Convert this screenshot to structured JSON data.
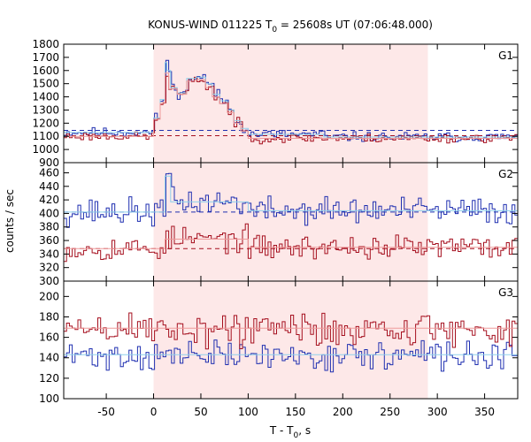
{
  "chart_data": {
    "type": "line",
    "title_parts": {
      "prefix": "KONUS-WIND 011225 T",
      "sub": "0",
      "suffix": " = 25608s UT (07:06:48.000)"
    },
    "xlabel_parts": {
      "prefix": "T - T",
      "sub": "0",
      "suffix": ", s"
    },
    "ylabel": "counts / sec",
    "xlim": [
      -95,
      385
    ],
    "xticks": [
      -50,
      0,
      50,
      100,
      150,
      200,
      250,
      300,
      350
    ],
    "highlight_interval": [
      0,
      290
    ],
    "colors": {
      "highlight": "#fde8e8",
      "series_blue": "#1f2fb0",
      "series_red": "#a50f1e",
      "fit_blue": "#8fd0ec",
      "fit_red": "#ee9a9a",
      "background_level_blue": "#1f2fb0",
      "background_level_red": "#a50f1e"
    },
    "panels": [
      {
        "name": "G1",
        "ylim": [
          900,
          1800
        ],
        "yticks": [
          900,
          1000,
          1100,
          1200,
          1300,
          1400,
          1500,
          1600,
          1700,
          1800
        ],
        "background_level": {
          "blue": 1145,
          "red": 1105
        },
        "series": [
          {
            "color_key": "blue",
            "baseline": 1130,
            "noise": 18,
            "seed": 11,
            "features": [
              {
                "x0": 0,
                "x1": 7,
                "level": 1240
              },
              {
                "x0": 7,
                "x1": 12,
                "level": 1380
              },
              {
                "x0": 12,
                "x1": 14,
                "level": 1660
              },
              {
                "x0": 14,
                "x1": 18,
                "level": 1600
              },
              {
                "x0": 18,
                "x1": 25,
                "level": 1470
              },
              {
                "x0": 25,
                "x1": 35,
                "level": 1430
              },
              {
                "x0": 35,
                "x1": 45,
                "level": 1540
              },
              {
                "x0": 45,
                "x1": 55,
                "level": 1550
              },
              {
                "x0": 55,
                "x1": 62,
                "level": 1500
              },
              {
                "x0": 62,
                "x1": 70,
                "level": 1420
              },
              {
                "x0": 70,
                "x1": 78,
                "level": 1370
              },
              {
                "x0": 78,
                "x1": 85,
                "level": 1300
              },
              {
                "x0": 85,
                "x1": 92,
                "level": 1220
              },
              {
                "x0": 92,
                "x1": 100,
                "level": 1160
              },
              {
                "x0": 100,
                "x1": 180,
                "level": 1115
              },
              {
                "x0": 180,
                "x1": 385,
                "level": 1095
              }
            ]
          },
          {
            "color_key": "red",
            "baseline": 1100,
            "noise": 16,
            "seed": 23,
            "features": [
              {
                "x0": 0,
                "x1": 7,
                "level": 1230
              },
              {
                "x0": 7,
                "x1": 12,
                "level": 1350
              },
              {
                "x0": 12,
                "x1": 16,
                "level": 1580
              },
              {
                "x0": 16,
                "x1": 25,
                "level": 1460
              },
              {
                "x0": 25,
                "x1": 35,
                "level": 1420
              },
              {
                "x0": 35,
                "x1": 45,
                "level": 1520
              },
              {
                "x0": 45,
                "x1": 55,
                "level": 1530
              },
              {
                "x0": 55,
                "x1": 62,
                "level": 1470
              },
              {
                "x0": 62,
                "x1": 70,
                "level": 1400
              },
              {
                "x0": 70,
                "x1": 78,
                "level": 1350
              },
              {
                "x0": 78,
                "x1": 85,
                "level": 1280
              },
              {
                "x0": 85,
                "x1": 92,
                "level": 1200
              },
              {
                "x0": 92,
                "x1": 100,
                "level": 1140
              },
              {
                "x0": 100,
                "x1": 385,
                "level": 1085
              }
            ]
          }
        ],
        "fits": [
          {
            "color_key": "fit_blue",
            "points": [
              [
                -95,
                1130
              ],
              [
                0,
                1130
              ],
              [
                0,
                1240
              ],
              [
                7,
                1240
              ],
              [
                7,
                1380
              ],
              [
                12,
                1380
              ],
              [
                12,
                1660
              ],
              [
                14,
                1660
              ],
              [
                14,
                1600
              ],
              [
                18,
                1600
              ],
              [
                18,
                1470
              ],
              [
                25,
                1470
              ],
              [
                25,
                1430
              ],
              [
                35,
                1430
              ],
              [
                35,
                1540
              ],
              [
                45,
                1540
              ],
              [
                45,
                1550
              ],
              [
                55,
                1550
              ],
              [
                55,
                1500
              ],
              [
                62,
                1500
              ],
              [
                62,
                1420
              ],
              [
                70,
                1420
              ],
              [
                70,
                1370
              ],
              [
                78,
                1370
              ],
              [
                78,
                1300
              ],
              [
                85,
                1300
              ],
              [
                85,
                1220
              ],
              [
                92,
                1220
              ],
              [
                92,
                1160
              ],
              [
                100,
                1160
              ],
              [
                100,
                1115
              ],
              [
                180,
                1115
              ],
              [
                180,
                1095
              ],
              [
                385,
                1095
              ]
            ]
          },
          {
            "color_key": "fit_red",
            "points": [
              [
                -95,
                1100
              ],
              [
                0,
                1100
              ],
              [
                0,
                1230
              ],
              [
                7,
                1230
              ],
              [
                7,
                1350
              ],
              [
                12,
                1350
              ],
              [
                12,
                1580
              ],
              [
                16,
                1580
              ],
              [
                16,
                1460
              ],
              [
                25,
                1460
              ],
              [
                25,
                1420
              ],
              [
                35,
                1420
              ],
              [
                35,
                1520
              ],
              [
                45,
                1520
              ],
              [
                45,
                1530
              ],
              [
                55,
                1530
              ],
              [
                55,
                1470
              ],
              [
                62,
                1470
              ],
              [
                62,
                1400
              ],
              [
                70,
                1400
              ],
              [
                70,
                1350
              ],
              [
                78,
                1350
              ],
              [
                78,
                1280
              ],
              [
                85,
                1280
              ],
              [
                85,
                1200
              ],
              [
                92,
                1200
              ],
              [
                92,
                1140
              ],
              [
                100,
                1140
              ],
              [
                100,
                1085
              ],
              [
                385,
                1085
              ]
            ]
          }
        ]
      },
      {
        "name": "G2",
        "ylim": [
          300,
          475
        ],
        "yticks": [
          300,
          320,
          340,
          360,
          380,
          400,
          420,
          440,
          460
        ],
        "background_level": {
          "blue": 402,
          "red": 348
        },
        "series": [
          {
            "color_key": "blue",
            "baseline": 402,
            "noise": 10,
            "seed": 37,
            "features": [
              {
                "x0": 12,
                "x1": 14,
                "level": 452
              },
              {
                "x0": 14,
                "x1": 18,
                "level": 458
              },
              {
                "x0": 18,
                "x1": 100,
                "level": 417
              },
              {
                "x0": 100,
                "x1": 385,
                "level": 404
              }
            ]
          },
          {
            "color_key": "red",
            "baseline": 348,
            "noise": 9,
            "seed": 53,
            "features": [
              {
                "x0": 12,
                "x1": 100,
                "level": 362
              },
              {
                "x0": 100,
                "x1": 385,
                "level": 350
              }
            ]
          }
        ],
        "fits": [
          {
            "color_key": "fit_blue",
            "points": [
              [
                -95,
                402
              ],
              [
                12,
                402
              ],
              [
                12,
                455
              ],
              [
                18,
                455
              ],
              [
                18,
                417
              ],
              [
                100,
                417
              ],
              [
                100,
                404
              ],
              [
                385,
                404
              ]
            ]
          },
          {
            "color_key": "fit_red",
            "points": [
              [
                -95,
                348
              ],
              [
                12,
                348
              ],
              [
                12,
                362
              ],
              [
                100,
                362
              ],
              [
                100,
                350
              ],
              [
                385,
                350
              ]
            ]
          }
        ]
      },
      {
        "name": "G3",
        "ylim": [
          100,
          215
        ],
        "yticks": [
          100,
          120,
          140,
          160,
          180,
          200
        ],
        "background_level": {
          "blue": null,
          "red": null
        },
        "series": [
          {
            "color_key": "blue",
            "baseline": 142,
            "noise": 7,
            "seed": 71,
            "features": []
          },
          {
            "color_key": "red",
            "baseline": 168,
            "noise": 9,
            "seed": 89,
            "features": []
          }
        ],
        "fits": [
          {
            "color_key": "fit_blue",
            "points": [
              [
                -95,
                143
              ],
              [
                385,
                143
              ]
            ]
          },
          {
            "color_key": "fit_red",
            "points": [
              [
                -95,
                169
              ],
              [
                385,
                169
              ]
            ]
          }
        ]
      }
    ]
  }
}
